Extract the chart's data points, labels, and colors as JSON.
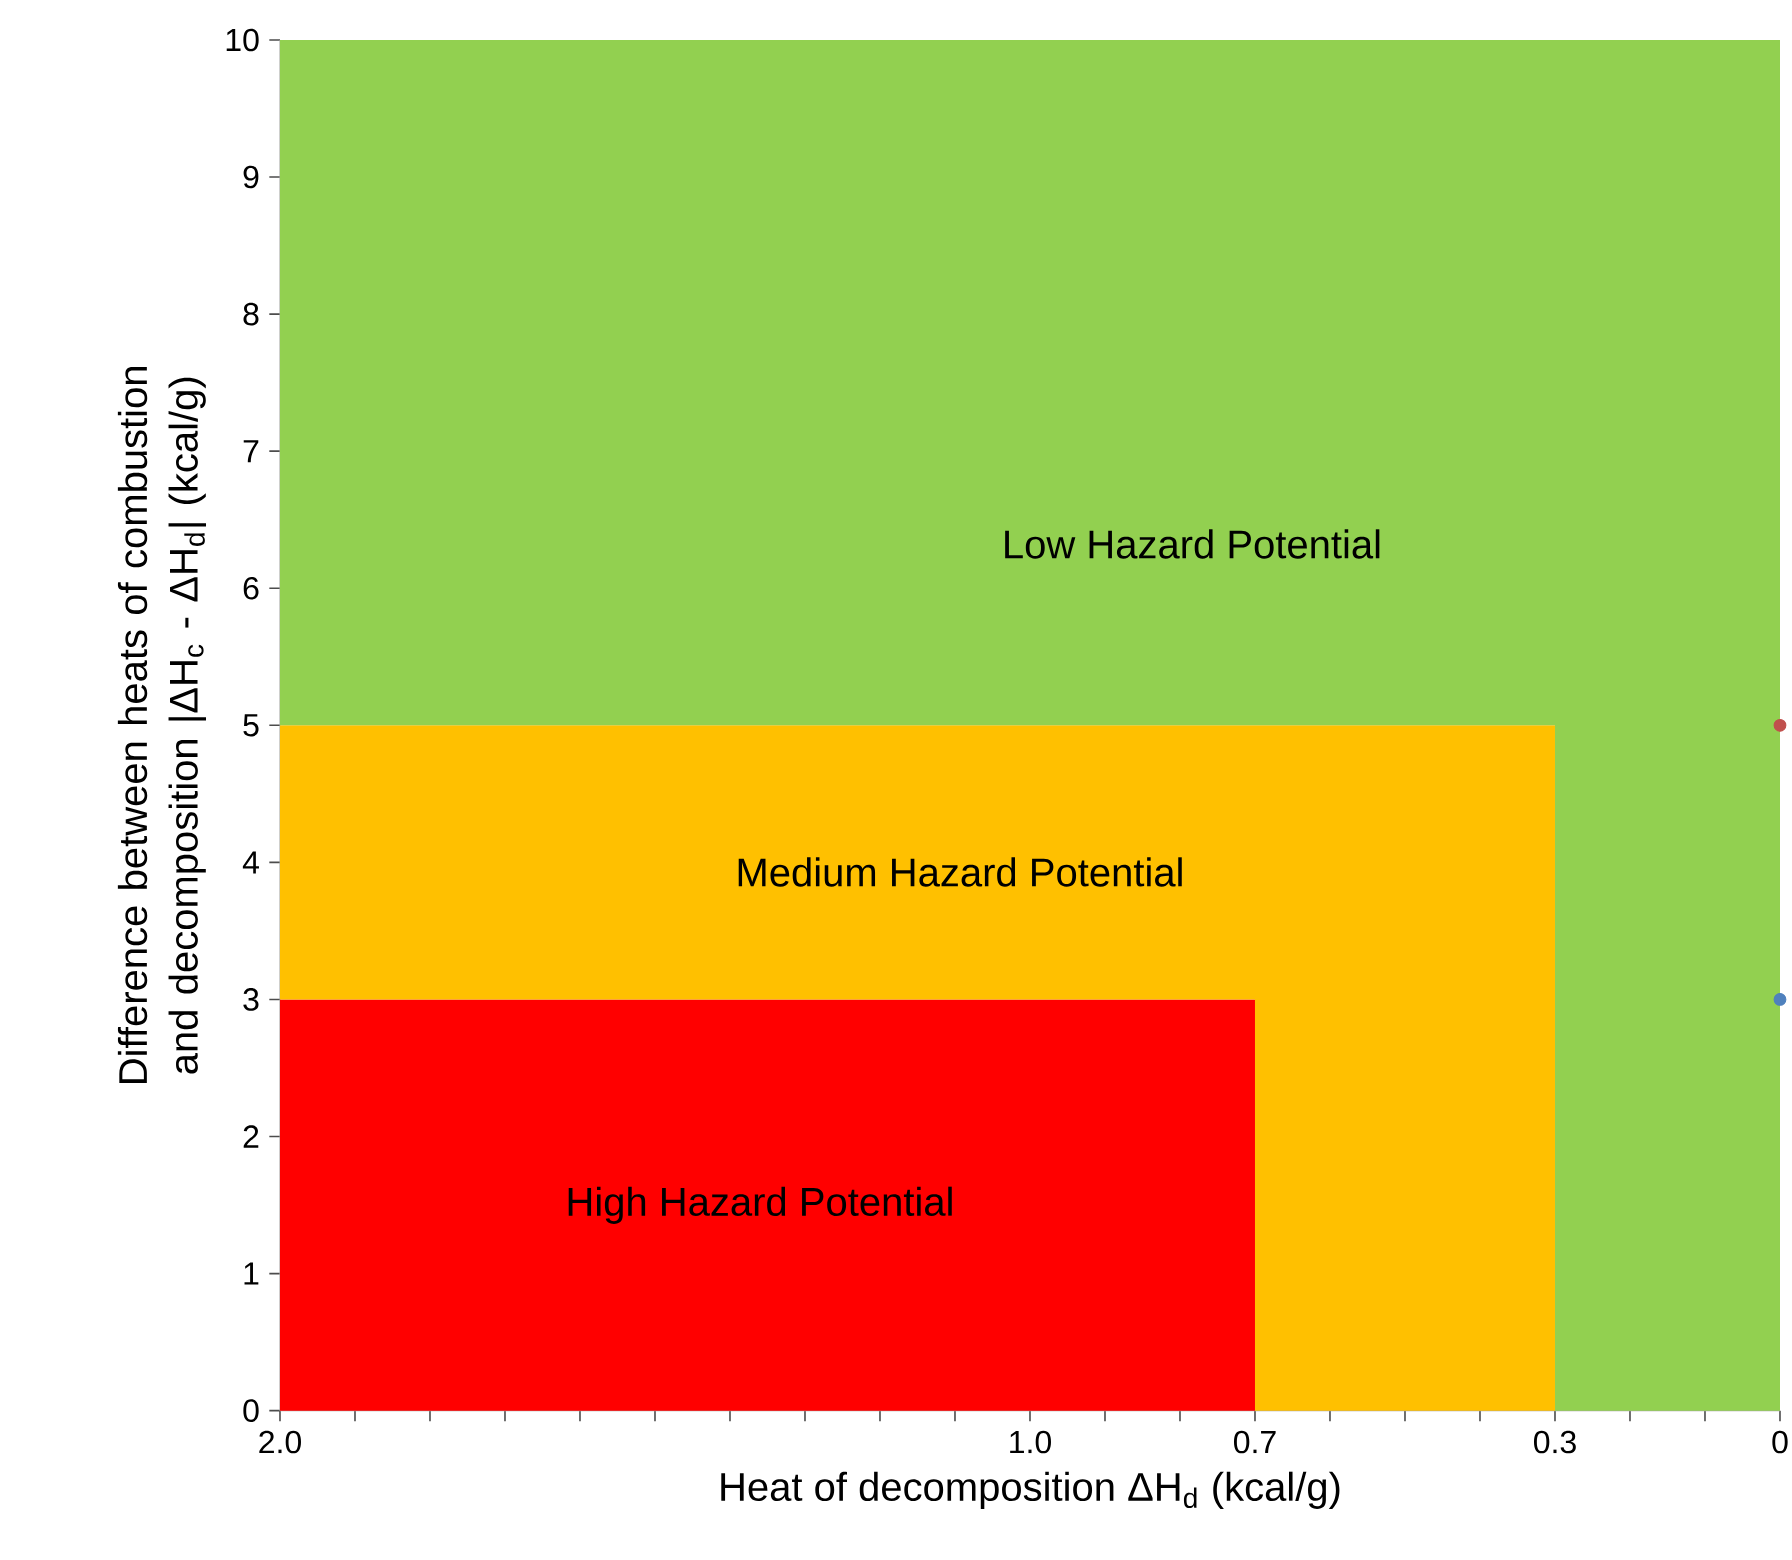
{
  "chart_data": {
    "type": "area",
    "stacked": true,
    "xlabel": "Heat of decomposition ΔH$_{d}$ (kcal/g)",
    "ylabel": "Difference between heats of combustion and decomposition |ΔH$_{c}$ - ΔH$_{d}$| (kcal/g)",
    "xlim": [
      2,
      0
    ],
    "ylim": [
      0,
      10
    ],
    "xticks": [
      {
        "value": 2,
        "label": "2.0"
      },
      {
        "value": 1.9,
        "label": null
      },
      {
        "value": 1.8,
        "label": null
      },
      {
        "value": 1.7,
        "label": null
      },
      {
        "value": 1.6,
        "label": null
      },
      {
        "value": 1.5,
        "label": null
      },
      {
        "value": 1.4,
        "label": null
      },
      {
        "value": 1.3,
        "label": null
      },
      {
        "value": 1.2,
        "label": null
      },
      {
        "value": 1.1,
        "label": null
      },
      {
        "value": 1,
        "label": "1.0"
      },
      {
        "value": 0.9,
        "label": null
      },
      {
        "value": 0.8,
        "label": null
      },
      0.7,
      {
        "value": 0.6,
        "label": null
      },
      {
        "value": 0.5,
        "label": null
      },
      {
        "value": 0.4,
        "label": null
      },
      0.3,
      {
        "value": 0.2,
        "label": null
      },
      {
        "value": 0.1,
        "label": null
      },
      0
    ],
    "yticks": [
      0,
      1,
      2,
      3,
      4,
      5,
      6,
      7,
      8,
      9,
      10
    ],
    "grid": false,
    "series": [
      {
        "color": "#ff0000",
        "x": [
          2,
          0.7,
          0.7,
          0.3,
          0.3,
          0
        ],
        "values": [
          3,
          3,
          0,
          0,
          0,
          0
        ]
      },
      {
        "color": "#ffc000",
        "x": [
          2,
          0.7,
          0.7,
          0.3,
          0.3,
          0
        ],
        "values": [
          2,
          2,
          5,
          5,
          0,
          0
        ]
      },
      {
        "color": "#92d050",
        "x": [
          2,
          0.7,
          0.7,
          0.3,
          0.3,
          0
        ],
        "values": [
          5,
          5,
          5,
          5,
          10,
          10
        ]
      },
      {
        "type": "scatter",
        "color": "#c0504d",
        "x": [
          0
        ],
        "values": [
          5
        ]
      },
      {
        "type": "scatter",
        "color": "#4f81bd",
        "x": [
          0
        ],
        "values": [
          3
        ]
      }
    ],
    "annotations": [
      "Low Hazard Potential",
      "Medium Hazard Potential",
      "High Hazard Potential"
    ]
  }
}
